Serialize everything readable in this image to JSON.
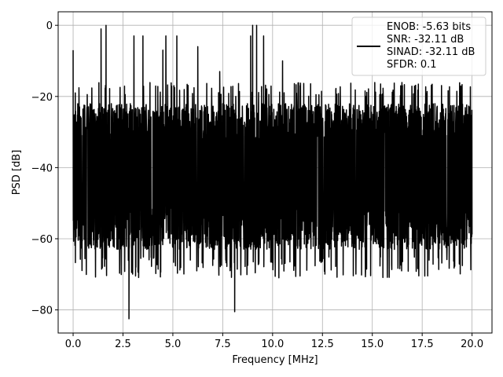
{
  "chart_data": {
    "type": "line",
    "title": "",
    "xlabel": "Frequency [MHz]",
    "ylabel": "PSD [dB]",
    "xlim": [
      -0.75,
      21.0
    ],
    "ylim": [
      -86.5,
      3.8
    ],
    "xticks": [
      0.0,
      2.5,
      5.0,
      7.5,
      10.0,
      12.5,
      15.0,
      17.5,
      20.0
    ],
    "xtick_labels": [
      "0.0",
      "2.5",
      "5.0",
      "7.5",
      "10.0",
      "12.5",
      "15.0",
      "17.5",
      "20.0"
    ],
    "yticks": [
      0,
      -20,
      -40,
      -60,
      -80
    ],
    "ytick_labels": [
      "0",
      "−20",
      "−40",
      "−60",
      "−80"
    ],
    "grid": true,
    "legend_position": "top-right",
    "series": [
      {
        "color": "#000000",
        "noise_floor_range_db": [
          -63,
          -22
        ],
        "x_range": [
          0.0,
          20.0
        ],
        "spurs": [
          {
            "x": 0.0,
            "y": -7
          },
          {
            "x": 1.4,
            "y": -1
          },
          {
            "x": 1.65,
            "y": 0
          },
          {
            "x": 2.8,
            "y": -82.5
          },
          {
            "x": 3.05,
            "y": -3
          },
          {
            "x": 3.5,
            "y": -3
          },
          {
            "x": 4.5,
            "y": -7
          },
          {
            "x": 4.65,
            "y": -3
          },
          {
            "x": 5.2,
            "y": -3
          },
          {
            "x": 6.25,
            "y": -6
          },
          {
            "x": 7.35,
            "y": -13
          },
          {
            "x": 8.1,
            "y": -80.5
          },
          {
            "x": 8.9,
            "y": -3
          },
          {
            "x": 9.0,
            "y": 0
          },
          {
            "x": 9.2,
            "y": 0
          },
          {
            "x": 9.55,
            "y": -3
          },
          {
            "x": 10.5,
            "y": -10
          }
        ]
      }
    ],
    "legend": {
      "lines": [
        "ENOB: -5.63 bits",
        "SNR: -32.11 dB",
        "SINAD: -32.11 dB",
        "SFDR: 0.1"
      ]
    }
  }
}
